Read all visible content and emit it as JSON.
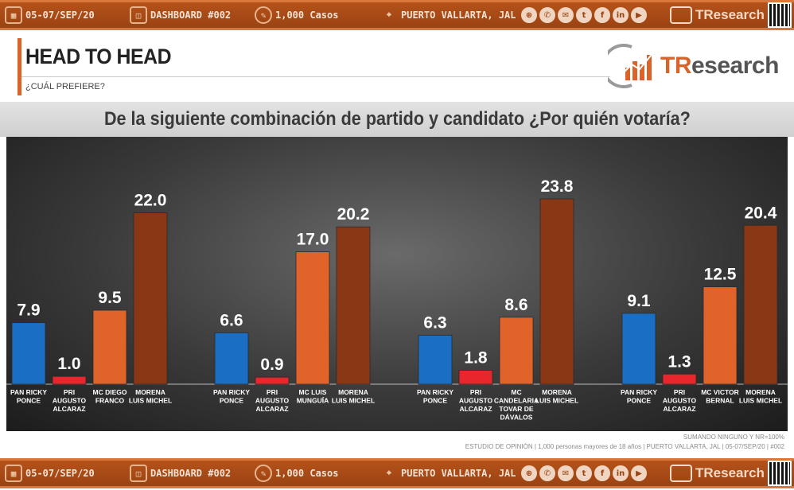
{
  "strip": {
    "date": "05-07/SEP/20",
    "dashboard": "DASHBOARD #002",
    "cases": "1,000 Casos",
    "location": "PUERTO VALLARTA, JAL",
    "brand_tr": "TR",
    "brand_rest": "esearch",
    "social_icons": [
      "globe-icon",
      "whatsapp-icon",
      "email-icon",
      "twitter-icon",
      "facebook-icon",
      "linkedin-icon",
      "youtube-icon"
    ]
  },
  "header": {
    "title": "HEAD TO HEAD",
    "subtitle": "¿CUÁL PREFIERE?",
    "logo_tr": "TR",
    "logo_rest": "esearch"
  },
  "question": "De la siguiente combinación de partido y candidato ¿Por quién votaría?",
  "footnotes": {
    "line1": "SUMANDO NINGUNO Y NR=100%",
    "line2": "ESTUDIO DE OPINIÓN | 1,000 personas mayores de 18 años | PUERTO VALLARTA, JAL | 05-07/SEP/20 | #002"
  },
  "colors": {
    "pan": "#1a6fc4",
    "pri": "#e8262c",
    "mc": "#e0642a",
    "morena": "#8a3716",
    "accent": "#b5521a"
  },
  "chart_data": {
    "type": "bar",
    "ylim": [
      0,
      25
    ],
    "groups": [
      {
        "bars": [
          {
            "label": [
              "PAN RICKY",
              "PONCE"
            ],
            "value": 7.9,
            "party": "pan"
          },
          {
            "label": [
              "PRI",
              "AUGUSTO",
              "ALCARAZ"
            ],
            "value": 1.0,
            "party": "pri"
          },
          {
            "label": [
              "MC  DIEGO",
              "FRANCO"
            ],
            "value": 9.5,
            "party": "mc"
          },
          {
            "label": [
              "MORENA",
              "LUIS MICHEL"
            ],
            "value": 22.0,
            "party": "morena"
          }
        ]
      },
      {
        "bars": [
          {
            "label": [
              "PAN RICKY",
              "PONCE"
            ],
            "value": 6.6,
            "party": "pan"
          },
          {
            "label": [
              "PRI",
              "AUGUSTO",
              "ALCARAZ"
            ],
            "value": 0.9,
            "party": "pri"
          },
          {
            "label": [
              "MC LUIS",
              "MUNGUÍA"
            ],
            "value": 17.0,
            "party": "mc"
          },
          {
            "label": [
              "MORENA",
              "LUIS MICHEL"
            ],
            "value": 20.2,
            "party": "morena"
          }
        ]
      },
      {
        "bars": [
          {
            "label": [
              "PAN RICKY",
              "PONCE"
            ],
            "value": 6.3,
            "party": "pan"
          },
          {
            "label": [
              "PRI",
              "AUGUSTO",
              "ALCARAZ"
            ],
            "value": 1.8,
            "party": "pri"
          },
          {
            "label": [
              "MC",
              "CANDELARIA",
              "TOVAR DE",
              "DÁVALOS"
            ],
            "value": 8.6,
            "party": "mc"
          },
          {
            "label": [
              "MORENA",
              "LUIS MICHEL"
            ],
            "value": 23.8,
            "party": "morena"
          }
        ]
      },
      {
        "bars": [
          {
            "label": [
              "PAN RICKY",
              "PONCE"
            ],
            "value": 9.1,
            "party": "pan"
          },
          {
            "label": [
              "PRI",
              "AUGUSTO",
              "ALCARAZ"
            ],
            "value": 1.3,
            "party": "pri"
          },
          {
            "label": [
              "MC VICTOR",
              "BERNAL"
            ],
            "value": 12.5,
            "party": "mc"
          },
          {
            "label": [
              "MORENA",
              "LUIS MICHEL"
            ],
            "value": 20.4,
            "party": "morena"
          }
        ]
      }
    ]
  }
}
